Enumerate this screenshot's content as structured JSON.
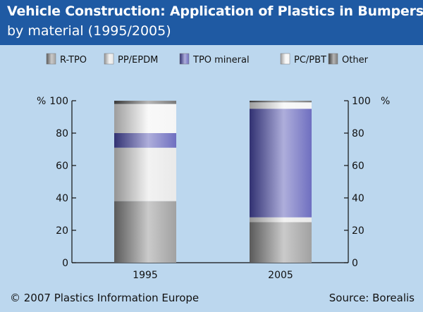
{
  "header": {
    "title": "Vehicle Construction: Application of Plastics in Bumpers",
    "subtitle": "by material (1995/2005)"
  },
  "footer": {
    "copyright": "© 2007 Plastics Information Europe",
    "source": "Source: Borealis"
  },
  "colors": {
    "background": "#bcd7ee",
    "header": "#1f5aa3",
    "R-TPO": "#8a8a8a",
    "PP/EPDM": "#e3e3e3",
    "TPO mineral": "#4b4bb0",
    "PC/PBT": "#f2f2f2",
    "Other": "#5a5a5a"
  },
  "chart_data": {
    "type": "bar",
    "stacked": true,
    "categories": [
      "1995",
      "2005"
    ],
    "series": [
      {
        "name": "R-TPO",
        "values": [
          38,
          25
        ]
      },
      {
        "name": "PP/EPDM",
        "values": [
          33,
          3
        ]
      },
      {
        "name": "TPO mineral",
        "values": [
          9,
          67
        ]
      },
      {
        "name": "PC/PBT",
        "values": [
          18,
          4
        ]
      },
      {
        "name": "Other",
        "values": [
          2,
          1
        ]
      }
    ],
    "ylabel_left": "%",
    "ylabel_right": "%",
    "ylim": [
      0,
      100
    ],
    "yticks": [
      "0",
      "20",
      "40",
      "60",
      "80",
      "100"
    ],
    "legend_position": "top",
    "grid": false
  }
}
